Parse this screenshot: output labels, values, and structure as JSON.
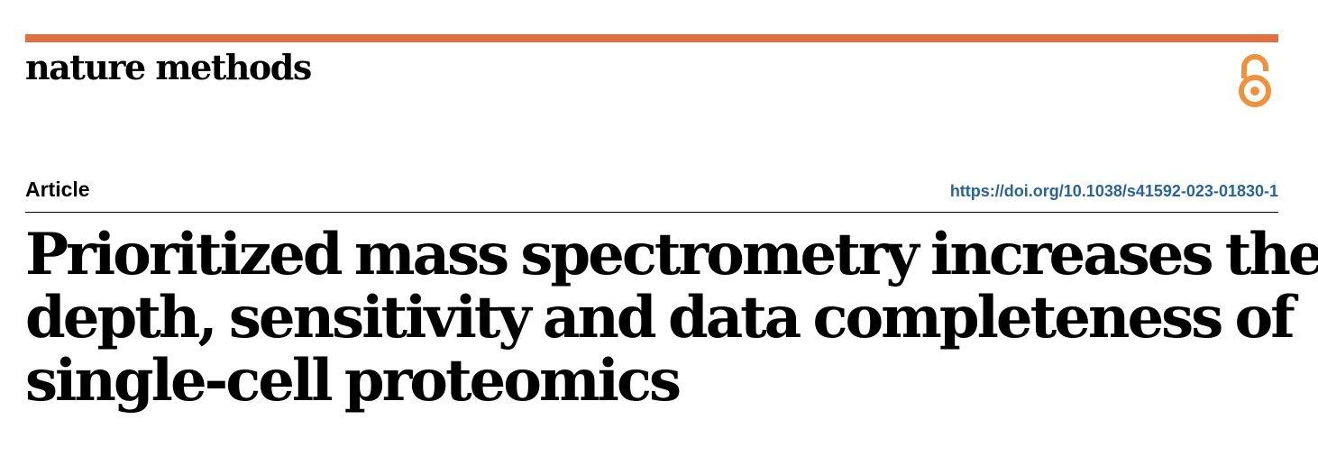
{
  "journal": {
    "name": "nature methods",
    "accent_color": "#e07040",
    "open_access_icon": "open-access-icon",
    "open_access_color": "#f0913c"
  },
  "article": {
    "type": "Article",
    "doi": "https://doi.org/10.1038/s41592-023-01830-1",
    "doi_color": "#2a6496",
    "title_lines": [
      "Prioritized mass spectrometry increases the",
      "depth, sensitivity and data completeness of",
      "single-cell proteomics"
    ]
  }
}
